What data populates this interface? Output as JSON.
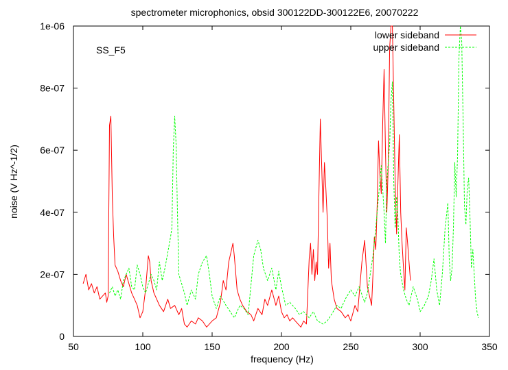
{
  "chart_data": {
    "type": "line",
    "title": "spectrometer microphonics, obsid 300122DD-300122E6, 20070222",
    "annotation": "SS_F5",
    "xlabel": "frequency (Hz)",
    "ylabel": "noise (V Hz^-1/2)",
    "xlim": [
      50,
      350
    ],
    "ylim": [
      0,
      1e-06
    ],
    "xticks": [
      50,
      100,
      150,
      200,
      250,
      300,
      350
    ],
    "xtick_labels": [
      "50",
      "100",
      "150",
      "200",
      "250",
      "300",
      "350"
    ],
    "yticks": [
      0,
      2e-07,
      4e-07,
      6e-07,
      8e-07,
      1e-06
    ],
    "ytick_labels": [
      "0",
      "2e-07",
      "4e-07",
      "6e-07",
      "8e-07",
      "1e-06"
    ],
    "grid": false,
    "legend_position": "top-right",
    "series": [
      {
        "name": "lower sideband",
        "color": "#ff0000",
        "dash": "solid",
        "x": [
          57,
          59,
          61,
          63,
          65,
          67,
          69,
          71,
          73,
          74,
          75,
          76,
          77,
          78,
          79,
          80,
          82,
          84,
          86,
          88,
          90,
          92,
          94,
          96,
          98,
          100,
          102,
          104,
          105,
          106,
          108,
          110,
          112,
          115,
          118,
          120,
          123,
          126,
          128,
          130,
          132,
          135,
          138,
          140,
          143,
          146,
          148,
          150,
          153,
          156,
          158,
          160,
          162,
          164,
          165,
          166,
          168,
          170,
          172,
          175,
          178,
          180,
          183,
          186,
          188,
          190,
          193,
          196,
          198,
          200,
          202,
          204,
          206,
          208,
          210,
          212,
          214,
          216,
          218,
          220,
          221,
          222,
          223,
          224,
          225,
          226,
          227,
          228,
          229,
          230,
          231,
          232,
          233,
          234,
          235,
          236,
          238,
          240,
          243,
          246,
          248,
          250,
          253,
          255,
          258,
          260,
          262,
          264,
          265,
          266,
          267,
          268,
          269,
          270,
          271,
          272,
          273,
          274,
          275,
          276,
          277,
          278,
          279,
          280,
          281,
          282,
          283,
          284,
          285,
          286,
          287,
          288,
          289,
          290,
          291,
          292,
          293
        ],
        "y": [
          1.7e-07,
          2e-07,
          1.5e-07,
          1.7e-07,
          1.4e-07,
          1.6e-07,
          1.2e-07,
          1.3e-07,
          1.4e-07,
          1.1e-07,
          1.3e-07,
          6.8e-07,
          7.1e-07,
          4.5e-07,
          3.2e-07,
          2.3e-07,
          2.1e-07,
          1.8e-07,
          1.6e-07,
          2e-07,
          1.7e-07,
          1.4e-07,
          1.2e-07,
          1e-07,
          6e-08,
          8e-08,
          1.5e-07,
          2.6e-07,
          2.4e-07,
          1.8e-07,
          1.4e-07,
          1.2e-07,
          1e-07,
          8e-08,
          1.2e-07,
          9e-08,
          1e-07,
          7e-08,
          9e-08,
          4e-08,
          3e-08,
          5e-08,
          4e-08,
          6e-08,
          5e-08,
          3e-08,
          4e-08,
          5e-08,
          6e-08,
          1.1e-07,
          1.8e-07,
          1.5e-07,
          2.4e-07,
          2.8e-07,
          3e-07,
          2.6e-07,
          1.5e-07,
          1.2e-07,
          1e-07,
          8e-08,
          7e-08,
          5e-08,
          9e-08,
          7e-08,
          1.2e-07,
          1e-07,
          1.5e-07,
          1e-07,
          1.3e-07,
          8e-08,
          6e-08,
          7e-08,
          5e-08,
          6e-08,
          5e-08,
          4e-08,
          3e-08,
          5e-08,
          4e-08,
          2.5e-07,
          3e-07,
          2e-07,
          2.8e-07,
          1.8e-07,
          2.4e-07,
          2e-07,
          4.5e-07,
          7e-07,
          5.5e-07,
          4e-07,
          5.6e-07,
          4.8e-07,
          3.8e-07,
          2.2e-07,
          3e-07,
          1.8e-07,
          1.2e-07,
          9e-08,
          8e-08,
          6e-08,
          7e-08,
          5e-08,
          1e-07,
          8e-08,
          2.4e-07,
          3.1e-07,
          1.6e-07,
          1.2e-07,
          1e-07,
          2e-07,
          3.2e-07,
          2.8e-07,
          4.2e-07,
          6.3e-07,
          5.2e-07,
          4.6e-07,
          6.9e-07,
          8.6e-07,
          6e-07,
          4e-07,
          5.5e-07,
          9.3e-07,
          1e-06,
          1e-06,
          7.5e-07,
          5e-07,
          3.3e-07,
          5e-07,
          6.5e-07,
          4e-07,
          3e-07,
          2.2e-07,
          1.5e-07,
          3.5e-07,
          3e-07,
          2.4e-07,
          1.8e-07
        ]
      },
      {
        "name": "upper sideband",
        "color": "#00ff00",
        "dash": "dashed",
        "x": [
          76,
          78,
          80,
          82,
          84,
          86,
          88,
          90,
          92,
          94,
          96,
          98,
          100,
          102,
          104,
          106,
          108,
          110,
          112,
          114,
          116,
          118,
          120,
          121,
          122,
          123,
          124,
          125,
          126,
          128,
          130,
          132,
          135,
          138,
          140,
          143,
          146,
          148,
          150,
          153,
          156,
          160,
          163,
          166,
          170,
          173,
          176,
          180,
          183,
          185,
          187,
          190,
          193,
          196,
          198,
          200,
          203,
          206,
          210,
          213,
          216,
          220,
          223,
          226,
          230,
          233,
          236,
          240,
          243,
          246,
          250,
          253,
          256,
          260,
          262,
          264,
          266,
          268,
          270,
          272,
          274,
          275,
          276,
          277,
          278,
          279,
          280,
          281,
          282,
          283,
          284,
          285,
          286,
          288,
          290,
          292,
          295,
          298,
          300,
          303,
          306,
          308,
          310,
          312,
          314,
          316,
          318,
          320,
          321,
          322,
          323,
          324,
          325,
          326,
          327,
          328,
          329,
          330,
          331,
          332,
          333,
          334,
          335,
          336,
          337,
          338,
          339,
          340,
          341,
          342
        ],
        "y": [
          1.4e-07,
          1.6e-07,
          1.3e-07,
          1.5e-07,
          1.2e-07,
          1.8e-07,
          2e-07,
          2.2e-07,
          1.6e-07,
          1.5e-07,
          2.3e-07,
          2e-07,
          1.6e-07,
          1.4e-07,
          1.7e-07,
          2e-07,
          1.8e-07,
          1.5e-07,
          2.4e-07,
          1.8e-07,
          2.2e-07,
          2.7e-07,
          3.2e-07,
          3.5e-07,
          6e-07,
          7.1e-07,
          6.2e-07,
          4e-07,
          2e-07,
          1.7e-07,
          1.4e-07,
          1e-07,
          1.5e-07,
          1.2e-07,
          2e-07,
          2.4e-07,
          2.6e-07,
          2e-07,
          1.3e-07,
          9e-08,
          1.3e-07,
          1e-07,
          8e-08,
          6e-08,
          1e-07,
          9e-08,
          7e-08,
          2.6e-07,
          3.1e-07,
          2.8e-07,
          2.2e-07,
          1.8e-07,
          2.2e-07,
          1.5e-07,
          2.1e-07,
          1.6e-07,
          1e-07,
          1.1e-07,
          9e-08,
          7e-08,
          8e-08,
          6e-08,
          8e-08,
          5e-08,
          4e-08,
          5e-08,
          7e-08,
          1e-07,
          9e-08,
          1.2e-07,
          1.5e-07,
          1.3e-07,
          1.6e-07,
          1.1e-07,
          1.4e-07,
          2e-07,
          2.6e-07,
          3.5e-07,
          4.5e-07,
          5.5e-07,
          4e-07,
          3e-07,
          5e-07,
          5.6e-07,
          6.2e-07,
          7.6e-07,
          8.2e-07,
          5e-07,
          3.5e-07,
          4.5e-07,
          3.8e-07,
          2.5e-07,
          2e-07,
          1.5e-07,
          1.2e-07,
          1e-07,
          1.6e-07,
          1.2e-07,
          8e-08,
          1e-07,
          1.3e-07,
          1.8e-07,
          2.5e-07,
          1.5e-07,
          1e-07,
          2e-07,
          3.5e-07,
          4.3e-07,
          2.5e-07,
          1.8e-07,
          2.2e-07,
          3.5e-07,
          5.6e-07,
          4.5e-07,
          5.8e-07,
          9e-07,
          1e-06,
          9.5e-07,
          7e-07,
          4.2e-07,
          3.6e-07,
          4.8e-07,
          5.1e-07,
          3.8e-07,
          2.2e-07,
          2.8e-07,
          2e-07,
          1.2e-07,
          8e-08,
          6e-08
        ]
      }
    ]
  }
}
